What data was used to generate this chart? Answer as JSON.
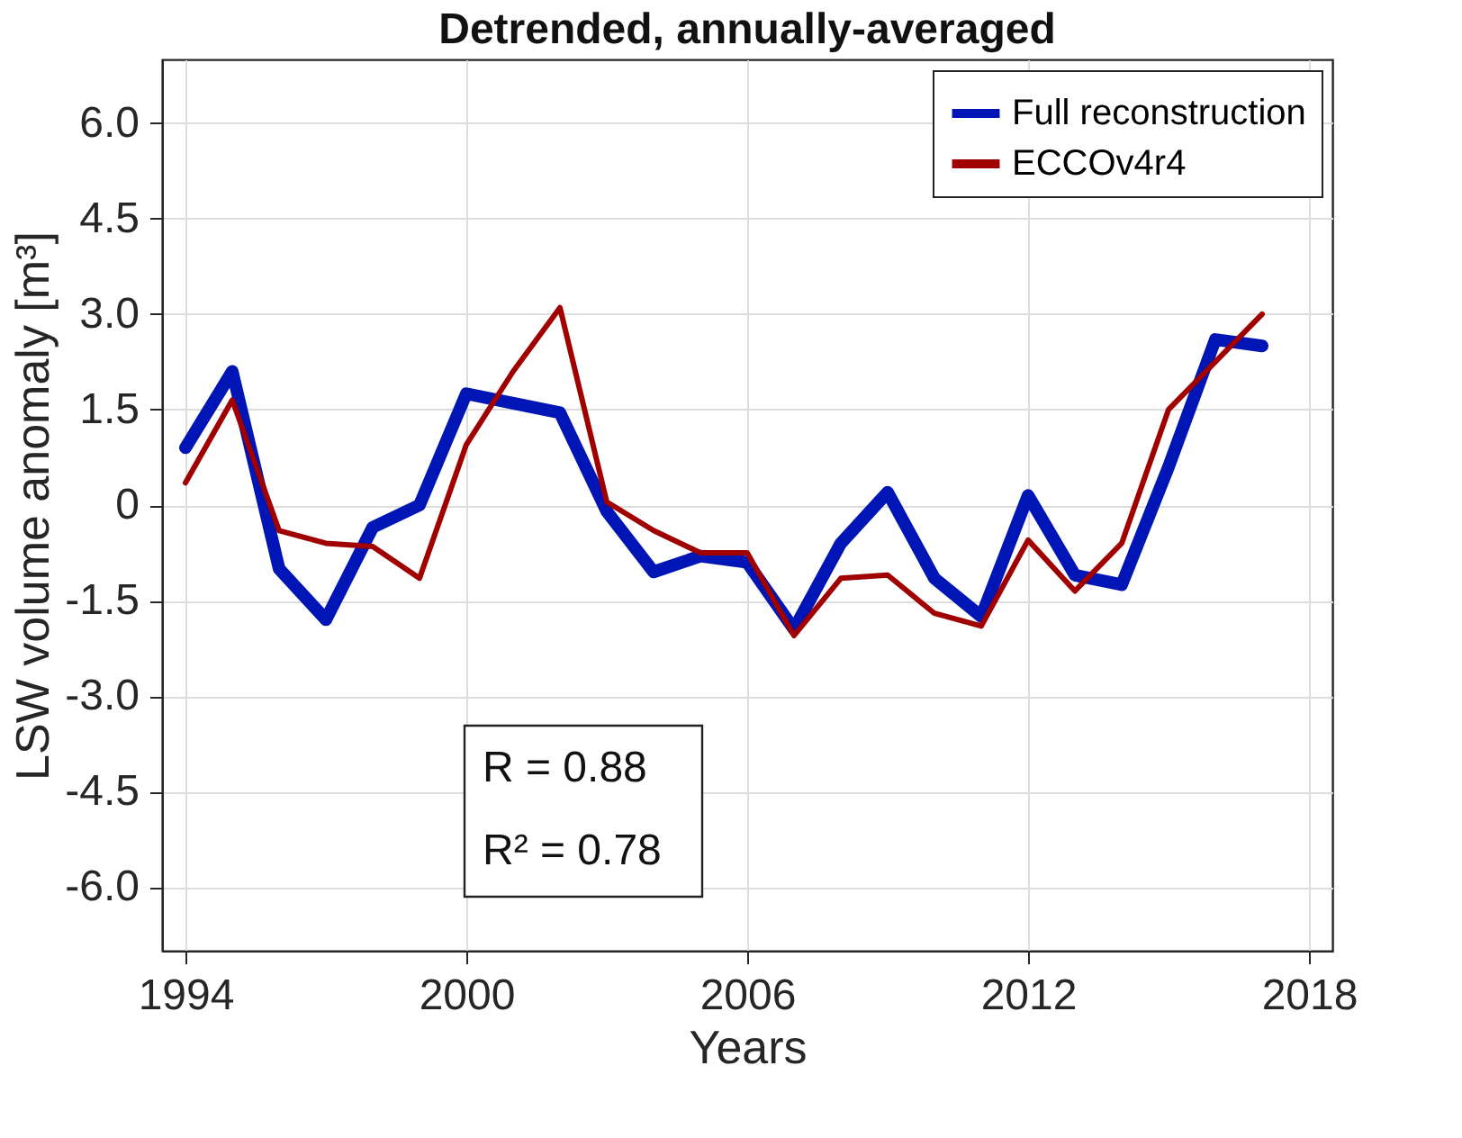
{
  "chart_data": {
    "type": "line",
    "title": "Detrended, annually-averaged",
    "xlabel": "Years",
    "ylabel": "LSW volume anomaly [m³]",
    "x": [
      1994,
      1995,
      1996,
      1997,
      1998,
      1999,
      2000,
      2001,
      2002,
      2003,
      2004,
      2005,
      2006,
      2007,
      2008,
      2009,
      2010,
      2011,
      2012,
      2013,
      2014,
      2015,
      2016,
      2017
    ],
    "series": [
      {
        "name": "Full reconstruction",
        "color": "#0015b5",
        "values": [
          0.9,
          2.1,
          -1.0,
          -1.8,
          -0.35,
          0.0,
          1.75,
          1.6,
          1.45,
          -0.1,
          -1.05,
          -0.8,
          -0.9,
          -1.95,
          -0.6,
          0.2,
          -1.15,
          -1.75,
          0.15,
          -1.1,
          -1.25,
          0.6,
          2.6,
          2.5
        ]
      },
      {
        "name": "ECCOv4r4",
        "color": "#a00000",
        "values": [
          0.35,
          1.65,
          -0.4,
          -0.6,
          -0.65,
          -1.15,
          0.95,
          2.1,
          3.1,
          0.05,
          -0.4,
          -0.75,
          -0.75,
          -2.05,
          -1.15,
          -1.1,
          -1.7,
          -1.9,
          -0.55,
          -1.35,
          -0.6,
          1.5,
          2.25,
          3.0
        ]
      }
    ],
    "xlim": [
      1993.5,
      2018.5
    ],
    "xticks": [
      1994,
      2000,
      2006,
      2012,
      2018
    ],
    "ylim": [
      -7,
      7
    ],
    "yticks": [
      {
        "value": -6,
        "label": "-6.0"
      },
      {
        "value": -4.5,
        "label": "-4.5"
      },
      {
        "value": -3,
        "label": "-3.0"
      },
      {
        "value": -1.5,
        "label": "-1.5"
      },
      0,
      1.5,
      {
        "value": 3,
        "label": "3.0"
      },
      4.5,
      {
        "value": 6,
        "label": "6.0"
      }
    ],
    "annotations": [
      "R = 0.88",
      "R² = 0.78"
    ],
    "grid": true,
    "legend": "top right",
    "line_style": "solid",
    "marker": "none"
  }
}
